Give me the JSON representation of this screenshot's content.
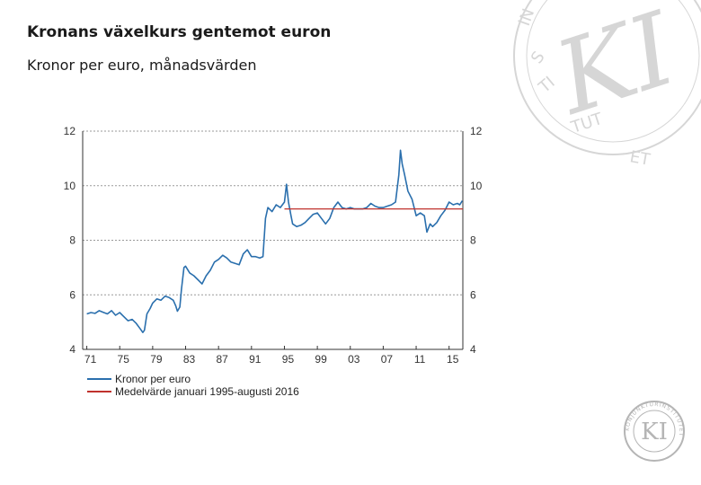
{
  "slide": {
    "title": "Kronans växelkurs gentemot euron",
    "subtitle": "Kronor per euro, månadsvärden"
  },
  "logo": {
    "watermark_text": "KONJUNKTURINSTITUTET",
    "watermark_initials": "KI",
    "seal_text": "KONJUNKTURINSTITUTET",
    "seal_initials": "KI"
  },
  "colors": {
    "series_main": "#2a6fad",
    "series_mean": "#c0322d",
    "grid": "#9a9a9a",
    "axis": "#333333",
    "watermark": "#d6d6d6",
    "seal": "#b5b5b5"
  },
  "chart_data": {
    "type": "line",
    "title": "",
    "xlabel": "",
    "ylabel": "",
    "xlim": [
      1970.5,
      2016.67
    ],
    "ylim": [
      4,
      12
    ],
    "yticks": [
      4,
      6,
      8,
      10,
      12
    ],
    "ytick_labels": [
      "4",
      "6",
      "8",
      "10",
      "12"
    ],
    "right_axis_mirrors_left": true,
    "xticks": [
      1971,
      1975,
      1979,
      1983,
      1987,
      1991,
      1995,
      1999,
      2003,
      2007,
      2011,
      2015
    ],
    "xtick_labels": [
      "71",
      "75",
      "79",
      "83",
      "87",
      "91",
      "95",
      "99",
      "03",
      "07",
      "11",
      "15"
    ],
    "grid": "horizontal dotted",
    "legend_position": "bottom-left",
    "series": [
      {
        "name": "Kronor per euro",
        "color": "#2a6fad",
        "points": [
          [
            1971.0,
            5.3
          ],
          [
            1971.5,
            5.35
          ],
          [
            1972.0,
            5.32
          ],
          [
            1972.5,
            5.42
          ],
          [
            1973.0,
            5.36
          ],
          [
            1973.5,
            5.3
          ],
          [
            1974.0,
            5.42
          ],
          [
            1974.5,
            5.25
          ],
          [
            1975.0,
            5.35
          ],
          [
            1975.5,
            5.2
          ],
          [
            1976.0,
            5.05
          ],
          [
            1976.5,
            5.1
          ],
          [
            1977.0,
            4.95
          ],
          [
            1977.5,
            4.75
          ],
          [
            1977.8,
            4.62
          ],
          [
            1978.0,
            4.7
          ],
          [
            1978.3,
            5.3
          ],
          [
            1978.7,
            5.5
          ],
          [
            1979.0,
            5.7
          ],
          [
            1979.5,
            5.85
          ],
          [
            1980.0,
            5.8
          ],
          [
            1980.5,
            5.95
          ],
          [
            1981.0,
            5.9
          ],
          [
            1981.5,
            5.8
          ],
          [
            1981.8,
            5.6
          ],
          [
            1982.0,
            5.4
          ],
          [
            1982.3,
            5.55
          ],
          [
            1982.5,
            6.2
          ],
          [
            1982.8,
            7.0
          ],
          [
            1983.0,
            7.05
          ],
          [
            1983.5,
            6.8
          ],
          [
            1984.0,
            6.7
          ],
          [
            1984.5,
            6.55
          ],
          [
            1985.0,
            6.4
          ],
          [
            1985.5,
            6.7
          ],
          [
            1986.0,
            6.9
          ],
          [
            1986.5,
            7.2
          ],
          [
            1987.0,
            7.3
          ],
          [
            1987.5,
            7.45
          ],
          [
            1988.0,
            7.35
          ],
          [
            1988.5,
            7.2
          ],
          [
            1989.0,
            7.15
          ],
          [
            1989.5,
            7.1
          ],
          [
            1990.0,
            7.5
          ],
          [
            1990.5,
            7.65
          ],
          [
            1991.0,
            7.4
          ],
          [
            1991.5,
            7.4
          ],
          [
            1992.0,
            7.35
          ],
          [
            1992.4,
            7.4
          ],
          [
            1992.7,
            8.8
          ],
          [
            1993.0,
            9.2
          ],
          [
            1993.5,
            9.05
          ],
          [
            1994.0,
            9.3
          ],
          [
            1994.5,
            9.2
          ],
          [
            1995.0,
            9.4
          ],
          [
            1995.25,
            10.05
          ],
          [
            1995.5,
            9.4
          ],
          [
            1995.8,
            8.9
          ],
          [
            1996.0,
            8.6
          ],
          [
            1996.5,
            8.5
          ],
          [
            1997.0,
            8.55
          ],
          [
            1997.5,
            8.65
          ],
          [
            1998.0,
            8.8
          ],
          [
            1998.5,
            8.95
          ],
          [
            1999.0,
            9.0
          ],
          [
            1999.5,
            8.8
          ],
          [
            2000.0,
            8.6
          ],
          [
            2000.5,
            8.8
          ],
          [
            2001.0,
            9.2
          ],
          [
            2001.5,
            9.4
          ],
          [
            2002.0,
            9.2
          ],
          [
            2002.5,
            9.15
          ],
          [
            2003.0,
            9.2
          ],
          [
            2003.5,
            9.15
          ],
          [
            2004.0,
            9.15
          ],
          [
            2004.5,
            9.15
          ],
          [
            2005.0,
            9.2
          ],
          [
            2005.5,
            9.35
          ],
          [
            2006.0,
            9.25
          ],
          [
            2006.5,
            9.2
          ],
          [
            2007.0,
            9.2
          ],
          [
            2007.5,
            9.25
          ],
          [
            2008.0,
            9.3
          ],
          [
            2008.5,
            9.4
          ],
          [
            2008.9,
            10.4
          ],
          [
            2009.1,
            11.3
          ],
          [
            2009.3,
            10.8
          ],
          [
            2009.6,
            10.4
          ],
          [
            2010.0,
            9.8
          ],
          [
            2010.5,
            9.5
          ],
          [
            2011.0,
            8.9
          ],
          [
            2011.5,
            9.0
          ],
          [
            2012.0,
            8.9
          ],
          [
            2012.3,
            8.3
          ],
          [
            2012.7,
            8.6
          ],
          [
            2013.0,
            8.5
          ],
          [
            2013.5,
            8.65
          ],
          [
            2014.0,
            8.9
          ],
          [
            2014.5,
            9.1
          ],
          [
            2015.0,
            9.4
          ],
          [
            2015.5,
            9.3
          ],
          [
            2016.0,
            9.35
          ],
          [
            2016.3,
            9.3
          ],
          [
            2016.6,
            9.45
          ]
        ]
      },
      {
        "name": "Medelvärde januari 1995-augusti 2016",
        "color": "#c0322d",
        "points": [
          [
            1995.0,
            9.15
          ],
          [
            2016.67,
            9.15
          ]
        ]
      }
    ]
  }
}
